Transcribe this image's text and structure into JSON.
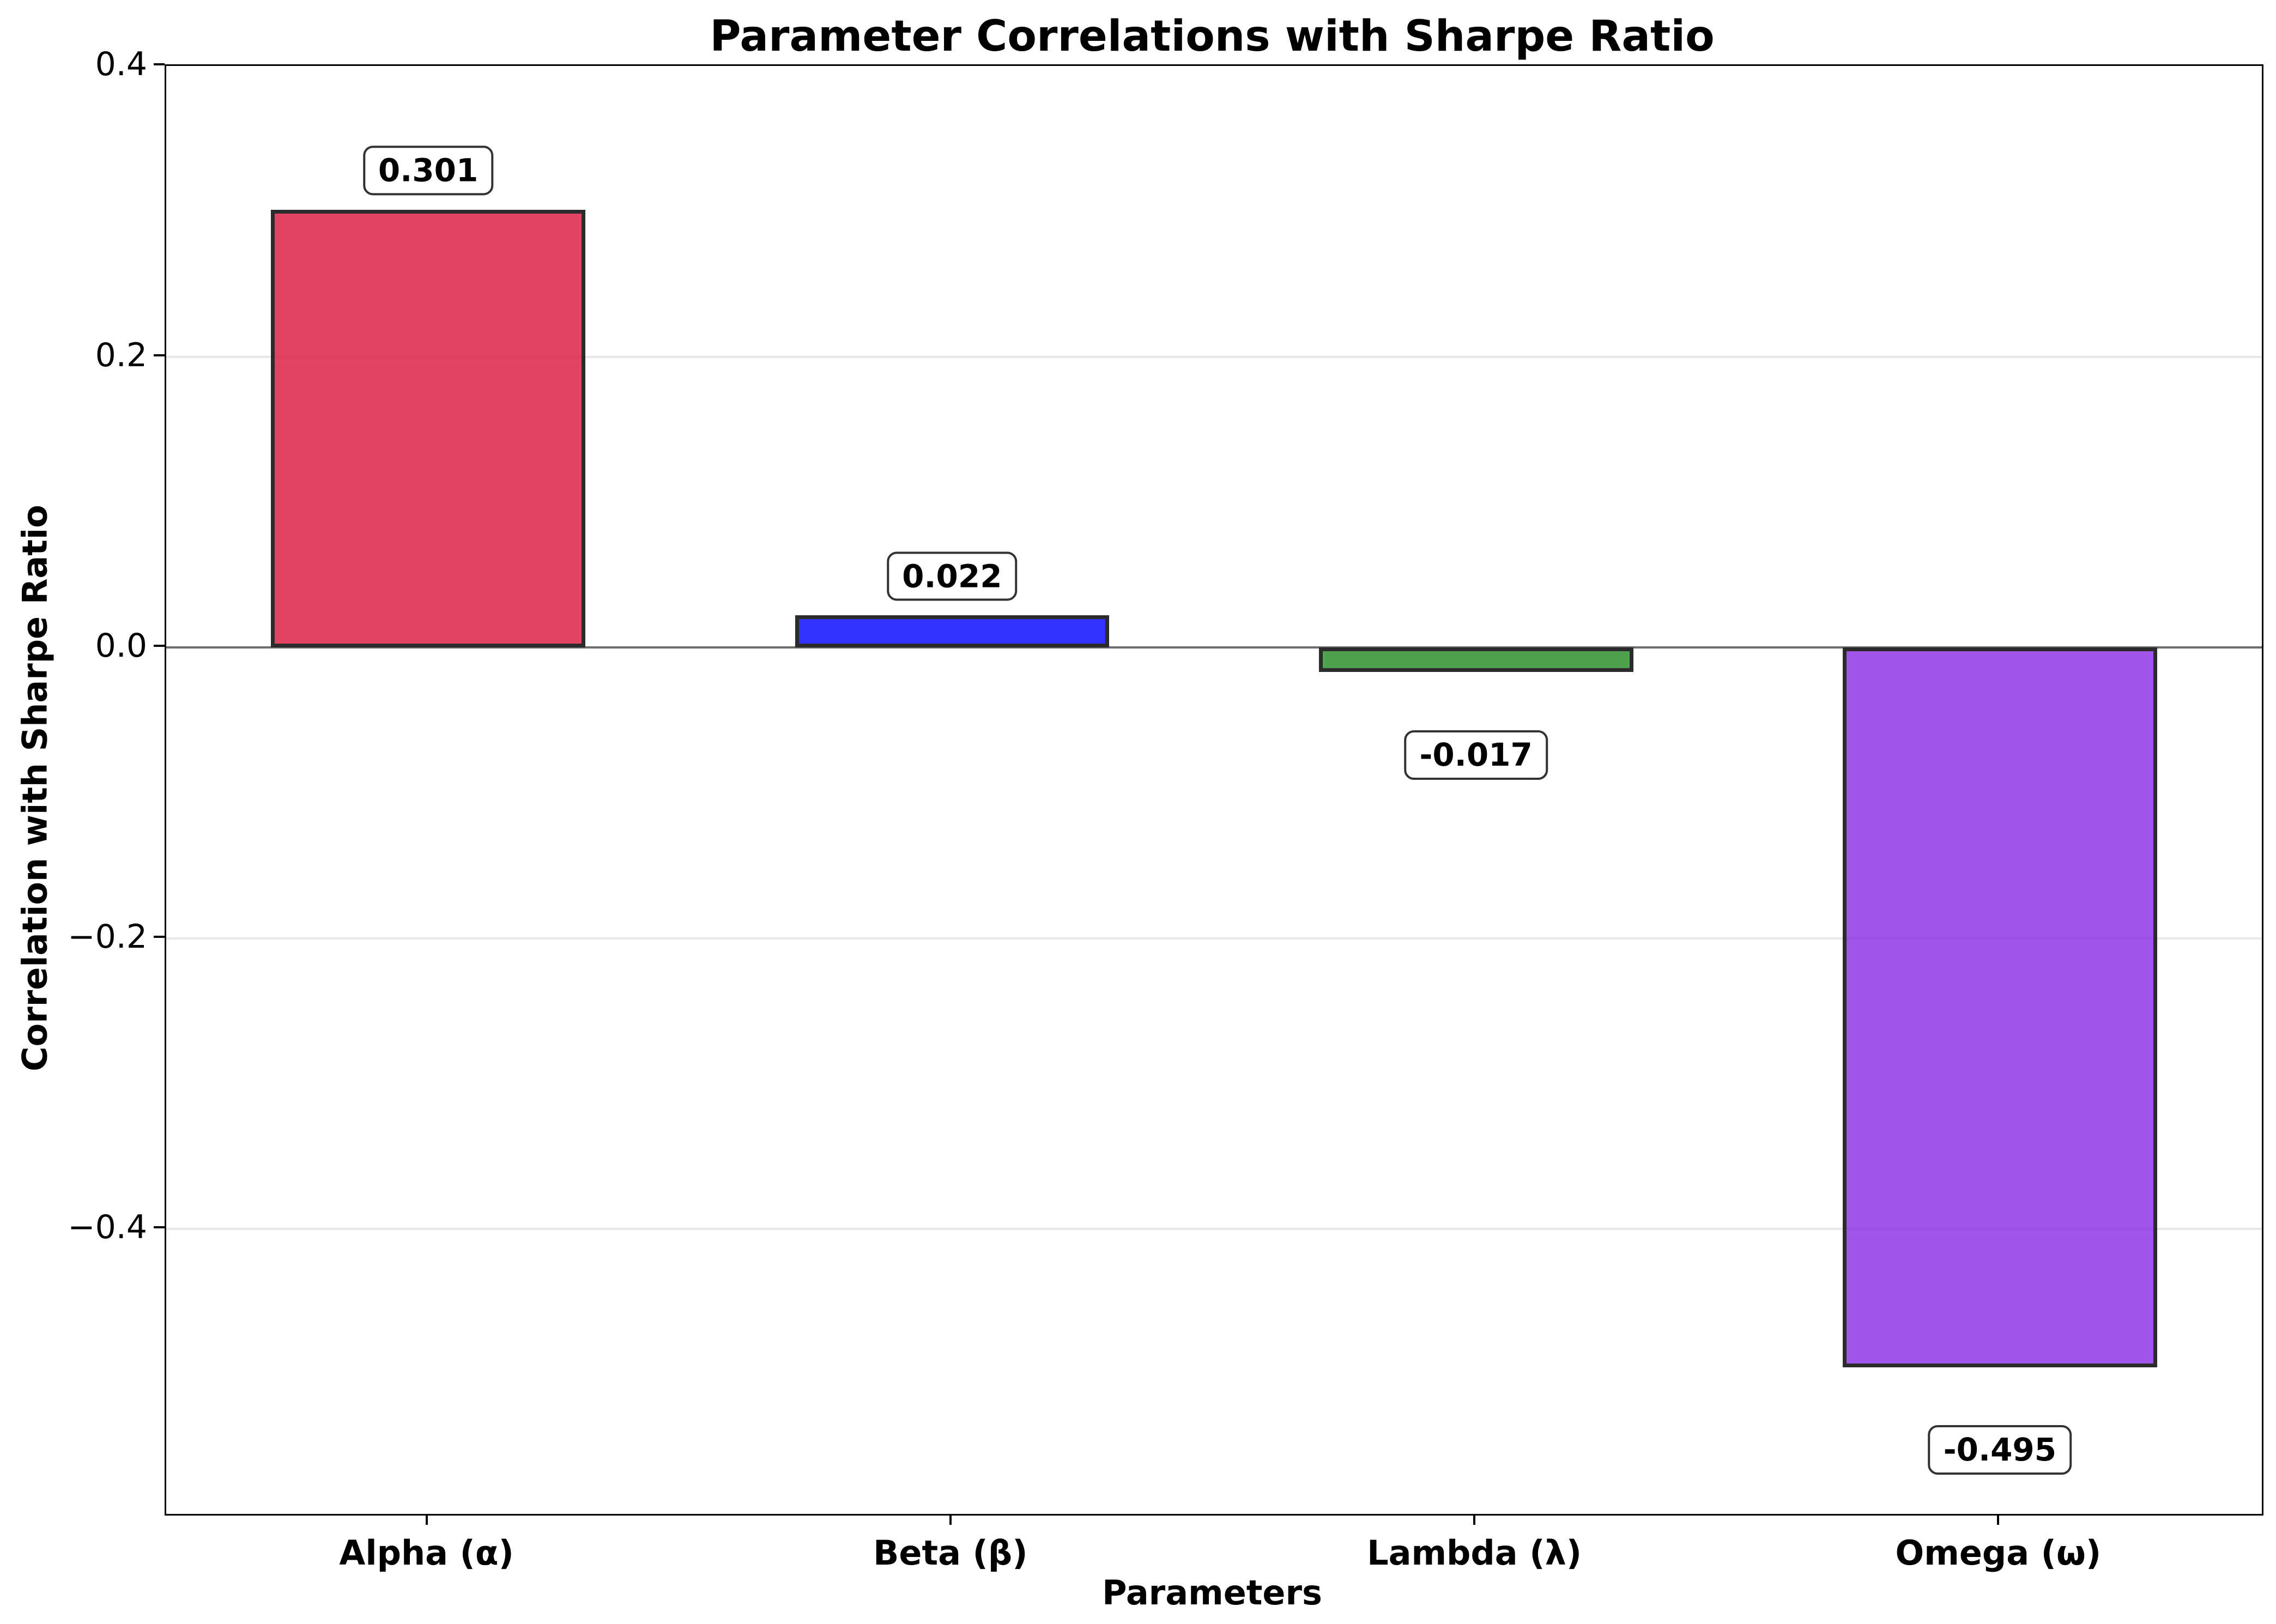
{
  "chart_data": {
    "type": "bar",
    "title": "Parameter Correlations with Sharpe Ratio",
    "xlabel": "Parameters",
    "ylabel": "Correlation with Sharpe Ratio",
    "categories": [
      "Alpha (α)",
      "Beta (β)",
      "Lambda (λ)",
      "Omega (ω)"
    ],
    "values": [
      0.301,
      0.022,
      -0.017,
      -0.495
    ],
    "bar_labels": [
      "0.301",
      "0.022",
      "-0.017",
      "-0.495"
    ],
    "bar_colors": [
      "rgba(220,20,60,0.8)",
      "rgba(0,0,255,0.8)",
      "rgba(34,139,34,0.8)",
      "rgba(138,43,226,0.8)"
    ],
    "bar_edge_color": "#2b2b2b",
    "bar_width_frac": 0.6,
    "ylim": [
      -0.596,
      0.4
    ],
    "yticks": [
      {
        "value": 0.4,
        "label": "0.4"
      },
      {
        "value": 0.2,
        "label": "0.2"
      },
      {
        "value": 0.0,
        "label": "0.0"
      },
      {
        "value": -0.2,
        "label": "−0.2"
      },
      {
        "value": -0.4,
        "label": "−0.4"
      }
    ],
    "grid": true,
    "grid_color": "#e7e7e7",
    "zero_line_color": "#6e6e6e",
    "legend_position": "none"
  }
}
